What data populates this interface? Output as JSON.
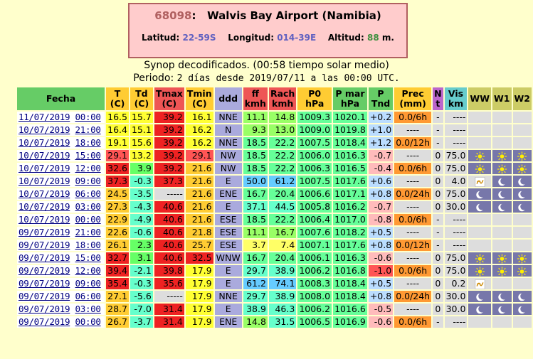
{
  "station": {
    "code": "68098",
    "name": "Walvis Bay Airport (Namibia)",
    "lat_label": "Latitud:",
    "lat_value": "22-59S",
    "lon_label": "Longitud:",
    "lon_value": "014-39E",
    "alt_label": "Altitud:",
    "alt_value": "88",
    "alt_unit": "m."
  },
  "subtitle": {
    "line1": "Synop decodificados. (00:58 tiempo solar medio)",
    "line2_a": "Periodo: ",
    "line2_b": "2 días desde 2019/07/11 a las 00:00 UTC."
  },
  "headers": {
    "fecha": "Fecha",
    "t": [
      "T",
      "(C)"
    ],
    "td": [
      "Td",
      "(C)"
    ],
    "tmax": [
      "Tmax",
      "(C)"
    ],
    "tmin": [
      "Tmin",
      "(C)"
    ],
    "ddd": "ddd",
    "ff": [
      "ff",
      "kmh"
    ],
    "rach": [
      "Rach",
      "kmh"
    ],
    "p0": [
      "P0",
      "hPa"
    ],
    "pmar": [
      "P mar",
      "hPa"
    ],
    "tnd": [
      "P",
      "Tnd"
    ],
    "prec": [
      "Prec",
      "(mm)"
    ],
    "nt": [
      "N",
      "t"
    ],
    "vis": [
      "Vis",
      "km"
    ],
    "ww": "WW",
    "w1": "W1",
    "w2": "W2"
  },
  "rows": [
    {
      "date": "11/07/2019",
      "time": "00:00",
      "t": "16.5",
      "t_c": "#ffff33",
      "td": "15.7",
      "td_c": "#ffff33",
      "tmax": "39.2",
      "tmax_c": "#ee2222",
      "tmin": "16.1",
      "tmin_c": "#ffff33",
      "ddd": "NNE",
      "ff": "11.1",
      "ff_c": "#99ff66",
      "rach": "14.8",
      "rach_c": "#99ff66",
      "p0": "1009.3",
      "p0_c": "#66ff99",
      "pmar": "1020.1",
      "pmar_c": "#66ff99",
      "tnd": "+0.2",
      "tnd_c": "#bbddff",
      "prec": "0.0/6h",
      "prec_c": "#ff9933",
      "nt": "-",
      "vis": "----",
      "ww": "",
      "w1": "",
      "w2": "",
      "wxd": [
        0,
        0,
        0
      ]
    },
    {
      "date": "10/07/2019",
      "time": "21:00",
      "t": "16.4",
      "t_c": "#ffff33",
      "td": "15.1",
      "td_c": "#ffff33",
      "tmax": "39.2",
      "tmax_c": "#ee2222",
      "tmin": "16.2",
      "tmin_c": "#ffff33",
      "ddd": "N",
      "ff": "9.3",
      "ff_c": "#99ff66",
      "rach": "13.0",
      "rach_c": "#99ff66",
      "p0": "1009.0",
      "p0_c": "#66ff99",
      "pmar": "1019.8",
      "pmar_c": "#66ff99",
      "tnd": "+1.0",
      "tnd_c": "#bbddff",
      "prec": "----",
      "prec_c": "#dddddd",
      "nt": "-",
      "vis": "----",
      "ww": "",
      "w1": "",
      "w2": "",
      "wxd": [
        0,
        0,
        0
      ]
    },
    {
      "date": "10/07/2019",
      "time": "18:00",
      "t": "19.1",
      "t_c": "#ffff33",
      "td": "15.6",
      "td_c": "#ffff33",
      "tmax": "39.2",
      "tmax_c": "#ee2222",
      "tmin": "16.2",
      "tmin_c": "#ffff33",
      "ddd": "NNE",
      "ff": "18.5",
      "ff_c": "#66ff99",
      "rach": "22.2",
      "rach_c": "#66ff99",
      "p0": "1007.5",
      "p0_c": "#66ff99",
      "pmar": "1018.4",
      "pmar_c": "#66ff99",
      "tnd": "+1.2",
      "tnd_c": "#bbddff",
      "prec": "0.0/12h",
      "prec_c": "#ff9933",
      "nt": "-",
      "vis": "----",
      "ww": "",
      "w1": "",
      "w2": "",
      "wxd": [
        0,
        0,
        0
      ]
    },
    {
      "date": "10/07/2019",
      "time": "15:00",
      "t": "29.1",
      "t_c": "#ff5555",
      "td": "13.2",
      "td_c": "#ffff33",
      "tmax": "39.2",
      "tmax_c": "#ee2222",
      "tmin": "29.1",
      "tmin_c": "#ff5555",
      "ddd": "NW",
      "ff": "18.5",
      "ff_c": "#66ff99",
      "rach": "22.2",
      "rach_c": "#66ff99",
      "p0": "1006.0",
      "p0_c": "#66ff99",
      "pmar": "1016.3",
      "pmar_c": "#66ff99",
      "tnd": "-0.7",
      "tnd_c": "#ffbbbb",
      "prec": "----",
      "prec_c": "#dddddd",
      "nt": "0",
      "vis": "75.0",
      "ww": "sun",
      "w1": "sun",
      "w2": "sun",
      "wxd": [
        1,
        1,
        1
      ]
    },
    {
      "date": "10/07/2019",
      "time": "12:00",
      "t": "32.6",
      "t_c": "#ee2222",
      "td": "3.9",
      "td_c": "#66ff66",
      "tmax": "39.2",
      "tmax_c": "#ee2222",
      "tmin": "21.6",
      "tmin_c": "#ffcc33",
      "ddd": "NW",
      "ff": "18.5",
      "ff_c": "#66ff99",
      "rach": "22.2",
      "rach_c": "#66ff99",
      "p0": "1006.3",
      "p0_c": "#66ff99",
      "pmar": "1016.5",
      "pmar_c": "#66ff99",
      "tnd": "-0.4",
      "tnd_c": "#ffbbbb",
      "prec": "0.0/6h",
      "prec_c": "#ff9933",
      "nt": "0",
      "vis": "75.0",
      "ww": "sun",
      "w1": "sun",
      "w2": "sun",
      "wxd": [
        1,
        1,
        1
      ]
    },
    {
      "date": "10/07/2019",
      "time": "09:00",
      "t": "37.3",
      "t_c": "#ee2222",
      "td": "-0.3",
      "td_c": "#66ffcc",
      "tmax": "37.3",
      "tmax_c": "#ee2222",
      "tmin": "21.6",
      "tmin_c": "#ffcc33",
      "ddd": "E",
      "ff": "50.0",
      "ff_c": "#66ccff",
      "rach": "61.2",
      "rach_c": "#66ccff",
      "p0": "1007.5",
      "p0_c": "#66ff99",
      "pmar": "1017.6",
      "pmar_c": "#66ff99",
      "tnd": "+0.6",
      "tnd_c": "#bbddff",
      "prec": "----",
      "prec_c": "#dddddd",
      "nt": "0",
      "vis": "4.0",
      "ww": "haze",
      "w1": "moon",
      "w2": "moon",
      "wxd": [
        0,
        1,
        1
      ]
    },
    {
      "date": "10/07/2019",
      "time": "06:00",
      "t": "24.5",
      "t_c": "#ffcc33",
      "td": "-3.5",
      "td_c": "#66ffcc",
      "tmax": "-----",
      "tmax_c": "#dddddd",
      "tmin": "21.6",
      "tmin_c": "#ffcc33",
      "ddd": "ENE",
      "ff": "16.7",
      "ff_c": "#66ff99",
      "rach": "20.4",
      "rach_c": "#66ff99",
      "p0": "1006.6",
      "p0_c": "#66ff99",
      "pmar": "1017.1",
      "pmar_c": "#66ff99",
      "tnd": "+0.8",
      "tnd_c": "#bbddff",
      "prec": "0.0/24h",
      "prec_c": "#ff9933",
      "nt": "0",
      "vis": "75.0",
      "ww": "moon",
      "w1": "moon",
      "w2": "moon",
      "wxd": [
        1,
        1,
        1
      ]
    },
    {
      "date": "10/07/2019",
      "time": "03:00",
      "t": "27.3",
      "t_c": "#ffcc33",
      "td": "-4.3",
      "td_c": "#66ffcc",
      "tmax": "40.6",
      "tmax_c": "#ee2222",
      "tmin": "21.6",
      "tmin_c": "#ffcc33",
      "ddd": "E",
      "ff": "37.1",
      "ff_c": "#66ffcc",
      "rach": "44.5",
      "rach_c": "#66ffcc",
      "p0": "1005.8",
      "p0_c": "#66ff99",
      "pmar": "1016.2",
      "pmar_c": "#66ff99",
      "tnd": "-0.7",
      "tnd_c": "#ffbbbb",
      "prec": "----",
      "prec_c": "#dddddd",
      "nt": "0",
      "vis": "30.0",
      "ww": "moon",
      "w1": "moon",
      "w2": "moon",
      "wxd": [
        1,
        1,
        1
      ]
    },
    {
      "date": "10/07/2019",
      "time": "00:00",
      "t": "22.9",
      "t_c": "#ffcc33",
      "td": "-4.9",
      "td_c": "#66ffcc",
      "tmax": "40.6",
      "tmax_c": "#ee2222",
      "tmin": "21.6",
      "tmin_c": "#ffcc33",
      "ddd": "ESE",
      "ff": "18.5",
      "ff_c": "#66ff99",
      "rach": "22.2",
      "rach_c": "#66ff99",
      "p0": "1006.4",
      "p0_c": "#66ff99",
      "pmar": "1017.0",
      "pmar_c": "#66ff99",
      "tnd": "-0.8",
      "tnd_c": "#ffbbbb",
      "prec": "0.0/6h",
      "prec_c": "#ff9933",
      "nt": "-",
      "vis": "----",
      "ww": "",
      "w1": "",
      "w2": "",
      "wxd": [
        0,
        0,
        0
      ]
    },
    {
      "date": "09/07/2019",
      "time": "21:00",
      "t": "22.6",
      "t_c": "#ffcc33",
      "td": "-0.6",
      "td_c": "#66ffcc",
      "tmax": "40.6",
      "tmax_c": "#ee2222",
      "tmin": "21.8",
      "tmin_c": "#ffcc33",
      "ddd": "ESE",
      "ff": "11.1",
      "ff_c": "#99ff66",
      "rach": "16.7",
      "rach_c": "#99ff66",
      "p0": "1007.6",
      "p0_c": "#66ff99",
      "pmar": "1018.2",
      "pmar_c": "#66ff99",
      "tnd": "+0.5",
      "tnd_c": "#bbddff",
      "prec": "----",
      "prec_c": "#dddddd",
      "nt": "-",
      "vis": "----",
      "ww": "",
      "w1": "",
      "w2": "",
      "wxd": [
        0,
        0,
        0
      ]
    },
    {
      "date": "09/07/2019",
      "time": "18:00",
      "t": "26.1",
      "t_c": "#ffcc33",
      "td": "2.3",
      "td_c": "#66ff66",
      "tmax": "40.6",
      "tmax_c": "#ee2222",
      "tmin": "25.7",
      "tmin_c": "#ffcc33",
      "ddd": "ESE",
      "ff": "3.7",
      "ff_c": "#ffff66",
      "rach": "7.4",
      "rach_c": "#ffff66",
      "p0": "1007.1",
      "p0_c": "#66ff99",
      "pmar": "1017.6",
      "pmar_c": "#66ff99",
      "tnd": "+0.8",
      "tnd_c": "#bbddff",
      "prec": "0.0/12h",
      "prec_c": "#ff9933",
      "nt": "-",
      "vis": "----",
      "ww": "",
      "w1": "",
      "w2": "",
      "wxd": [
        0,
        0,
        0
      ]
    },
    {
      "date": "09/07/2019",
      "time": "15:00",
      "t": "32.7",
      "t_c": "#ee2222",
      "td": "3.1",
      "td_c": "#66ff66",
      "tmax": "40.6",
      "tmax_c": "#ee2222",
      "tmin": "32.5",
      "tmin_c": "#ee2222",
      "ddd": "WNW",
      "ff": "16.7",
      "ff_c": "#66ff99",
      "rach": "20.4",
      "rach_c": "#66ff99",
      "p0": "1006.1",
      "p0_c": "#66ff99",
      "pmar": "1016.3",
      "pmar_c": "#66ff99",
      "tnd": "-0.6",
      "tnd_c": "#ffbbbb",
      "prec": "----",
      "prec_c": "#dddddd",
      "nt": "0",
      "vis": "75.0",
      "ww": "sun",
      "w1": "sun",
      "w2": "sun",
      "wxd": [
        1,
        1,
        1
      ]
    },
    {
      "date": "09/07/2019",
      "time": "12:00",
      "t": "39.4",
      "t_c": "#ee2222",
      "td": "-2.1",
      "td_c": "#66ffcc",
      "tmax": "39.8",
      "tmax_c": "#ee2222",
      "tmin": "17.9",
      "tmin_c": "#ffff33",
      "ddd": "E",
      "ff": "29.7",
      "ff_c": "#66ffcc",
      "rach": "38.9",
      "rach_c": "#66ffcc",
      "p0": "1006.2",
      "p0_c": "#66ff99",
      "pmar": "1016.8",
      "pmar_c": "#66ff99",
      "tnd": "-1.0",
      "tnd_c": "#ff5555",
      "prec": "0.0/6h",
      "prec_c": "#ff9933",
      "nt": "0",
      "vis": "75.0",
      "ww": "sun",
      "w1": "sun",
      "w2": "sun",
      "wxd": [
        1,
        1,
        1
      ]
    },
    {
      "date": "09/07/2019",
      "time": "09:00",
      "t": "35.4",
      "t_c": "#ee2222",
      "td": "-0.3",
      "td_c": "#66ffcc",
      "tmax": "35.6",
      "tmax_c": "#ee2222",
      "tmin": "17.9",
      "tmin_c": "#ffff33",
      "ddd": "E",
      "ff": "61.2",
      "ff_c": "#66ccff",
      "rach": "74.1",
      "rach_c": "#66ccff",
      "p0": "1008.3",
      "p0_c": "#66ff99",
      "pmar": "1018.4",
      "pmar_c": "#66ff99",
      "tnd": "+0.5",
      "tnd_c": "#bbddff",
      "prec": "----",
      "prec_c": "#dddddd",
      "nt": "0",
      "vis": "0.2",
      "ww": "haze",
      "w1": "",
      "w2": "",
      "wxd": [
        0,
        0,
        0
      ]
    },
    {
      "date": "09/07/2019",
      "time": "06:00",
      "t": "27.1",
      "t_c": "#ffcc33",
      "td": "-5.6",
      "td_c": "#66ffcc",
      "tmax": "-----",
      "tmax_c": "#dddddd",
      "tmin": "17.9",
      "tmin_c": "#ffff33",
      "ddd": "NNE",
      "ff": "29.7",
      "ff_c": "#66ffcc",
      "rach": "38.9",
      "rach_c": "#66ffcc",
      "p0": "1008.0",
      "p0_c": "#66ff99",
      "pmar": "1018.4",
      "pmar_c": "#66ff99",
      "tnd": "+0.8",
      "tnd_c": "#bbddff",
      "prec": "0.0/24h",
      "prec_c": "#ff9933",
      "nt": "0",
      "vis": "30.0",
      "ww": "moon",
      "w1": "moon",
      "w2": "moon",
      "wxd": [
        1,
        1,
        1
      ]
    },
    {
      "date": "09/07/2019",
      "time": "03:00",
      "t": "28.7",
      "t_c": "#ffcc33",
      "td": "-7.0",
      "td_c": "#66ffcc",
      "tmax": "31.4",
      "tmax_c": "#ee2222",
      "tmin": "17.9",
      "tmin_c": "#ffff33",
      "ddd": "E",
      "ff": "38.9",
      "ff_c": "#66ffcc",
      "rach": "46.3",
      "rach_c": "#66ffcc",
      "p0": "1006.2",
      "p0_c": "#66ff99",
      "pmar": "1016.6",
      "pmar_c": "#66ff99",
      "tnd": "-0.5",
      "tnd_c": "#ffbbbb",
      "prec": "----",
      "prec_c": "#dddddd",
      "nt": "0",
      "vis": "30.0",
      "ww": "moon",
      "w1": "moon",
      "w2": "moon",
      "wxd": [
        1,
        1,
        1
      ]
    },
    {
      "date": "09/07/2019",
      "time": "00:00",
      "t": "26.7",
      "t_c": "#ffcc33",
      "td": "-3.7",
      "td_c": "#66ffcc",
      "tmax": "31.4",
      "tmax_c": "#ee2222",
      "tmin": "17.9",
      "tmin_c": "#ffff33",
      "ddd": "ENE",
      "ff": "14.8",
      "ff_c": "#99ff66",
      "rach": "31.5",
      "rach_c": "#66ffcc",
      "p0": "1006.5",
      "p0_c": "#66ff99",
      "pmar": "1016.9",
      "pmar_c": "#66ff99",
      "tnd": "-0.6",
      "tnd_c": "#ffbbbb",
      "prec": "0.0/6h",
      "prec_c": "#ff9933",
      "nt": "-",
      "vis": "----",
      "ww": "",
      "w1": "",
      "w2": "",
      "wxd": [
        0,
        0,
        0
      ]
    }
  ]
}
